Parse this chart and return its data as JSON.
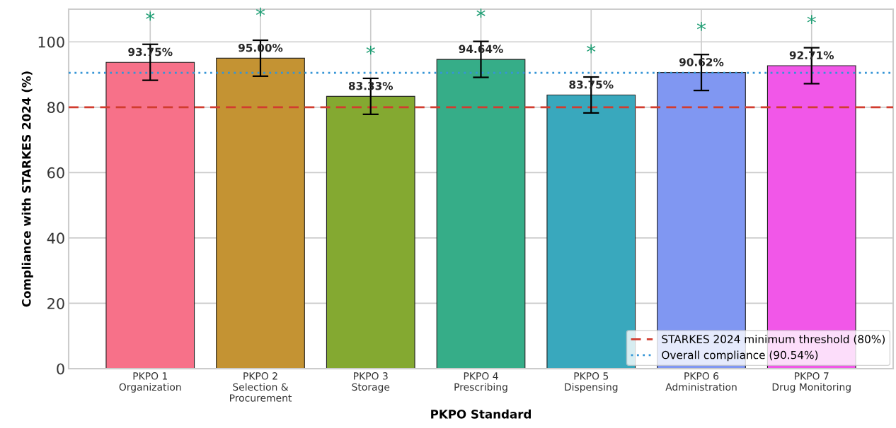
{
  "chart_data": {
    "type": "bar",
    "xlabel": "PKPO Standard",
    "ylabel": "Compliance with STARKES 2024 (%)",
    "categories": [
      "PKPO 1\nOrganization",
      "PKPO 2\nSelection &\nProcurement",
      "PKPO 3\nStorage",
      "PKPO 4\nPrescribing",
      "PKPO 5\nDispensing",
      "PKPO 6\nAdministration",
      "PKPO 7\nDrug Monitoring"
    ],
    "values": [
      93.75,
      95.0,
      83.33,
      94.64,
      83.75,
      90.62,
      92.71
    ],
    "colors": [
      "#f77189",
      "#c49333",
      "#84a931",
      "#36ad88",
      "#39a8bd",
      "#8097f2",
      "#f157e8"
    ],
    "errors": [
      5.5,
      5.5,
      5.5,
      5.5,
      5.5,
      5.5,
      5.5
    ],
    "value_labels": [
      "93.75%",
      "95.00%",
      "83.33%",
      "94.64%",
      "83.75%",
      "90.62%",
      "92.71%"
    ],
    "annotations": [
      "*",
      "*",
      "*",
      "*",
      "*",
      "*",
      "*"
    ],
    "ref_lines": [
      {
        "axis": "y",
        "value": 80,
        "label": "STARKES 2024 minimum threshold (80%)",
        "color": "#d13c2f",
        "line_style": "dashed"
      },
      {
        "axis": "y",
        "value": 90.54,
        "label": "Overall compliance (90.54%)",
        "color": "#3595d6",
        "line_style": "dotted"
      }
    ],
    "ylim": [
      0,
      110
    ],
    "yticks": [
      0,
      20,
      40,
      60,
      80,
      100
    ],
    "grid": true,
    "legend": "bottom right"
  }
}
